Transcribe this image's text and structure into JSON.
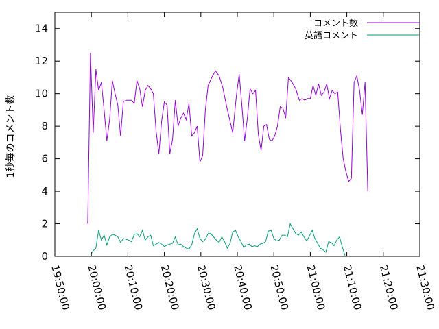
{
  "chart_data": {
    "type": "line",
    "title": "",
    "xlabel": "",
    "ylabel": "1秒毎のコメント数",
    "xlim": [
      "19:50:00",
      "21:30:00"
    ],
    "ylim": [
      0,
      15
    ],
    "x_ticks": [
      "19:50:00",
      "20:00:00",
      "20:10:00",
      "20:20:00",
      "20:30:00",
      "20:40:00",
      "20:50:00",
      "21:00:00",
      "21:10:00",
      "21:20:00",
      "21:30:00"
    ],
    "y_ticks": [
      0,
      2,
      4,
      6,
      8,
      10,
      12,
      14
    ],
    "grid": false,
    "legend_position": "top-right",
    "series": [
      {
        "name": "コメント数",
        "color": "#9400D3",
        "points": [
          [
            "19:59:00",
            2.0
          ],
          [
            "19:59:45",
            12.5
          ],
          [
            "20:00:30",
            7.6
          ],
          [
            "20:01:15",
            11.5
          ],
          [
            "20:02:00",
            10.2
          ],
          [
            "20:02:45",
            10.7
          ],
          [
            "20:03:30",
            9.0
          ],
          [
            "20:04:15",
            7.1
          ],
          [
            "20:05:00",
            8.4
          ],
          [
            "20:05:45",
            10.8
          ],
          [
            "20:06:30",
            10.0
          ],
          [
            "20:07:15",
            9.3
          ],
          [
            "20:08:00",
            7.4
          ],
          [
            "20:08:45",
            9.5
          ],
          [
            "20:09:30",
            9.6
          ],
          [
            "20:10:15",
            9.6
          ],
          [
            "20:11:00",
            9.6
          ],
          [
            "20:11:45",
            9.4
          ],
          [
            "20:12:30",
            10.8
          ],
          [
            "20:13:15",
            10.3
          ],
          [
            "20:14:00",
            9.2
          ],
          [
            "20:14:45",
            10.2
          ],
          [
            "20:15:30",
            10.5
          ],
          [
            "20:16:15",
            10.3
          ],
          [
            "20:17:00",
            10.0
          ],
          [
            "20:17:45",
            7.7
          ],
          [
            "20:18:30",
            6.3
          ],
          [
            "20:19:15",
            8.3
          ],
          [
            "20:20:00",
            9.5
          ],
          [
            "20:20:45",
            9.3
          ],
          [
            "20:21:30",
            6.3
          ],
          [
            "20:22:15",
            7.2
          ],
          [
            "20:23:00",
            9.6
          ],
          [
            "20:23:45",
            8.0
          ],
          [
            "20:24:30",
            8.5
          ],
          [
            "20:25:15",
            8.8
          ],
          [
            "20:26:00",
            8.4
          ],
          [
            "20:26:45",
            9.4
          ],
          [
            "20:27:30",
            7.4
          ],
          [
            "20:28:15",
            7.6
          ],
          [
            "20:29:00",
            8.0
          ],
          [
            "20:29:45",
            5.8
          ],
          [
            "20:30:30",
            6.2
          ],
          [
            "20:31:15",
            9.0
          ],
          [
            "20:32:00",
            10.5
          ],
          [
            "20:33:00",
            11.0
          ],
          [
            "20:34:00",
            11.4
          ],
          [
            "20:35:00",
            11.1
          ],
          [
            "20:36:00",
            10.4
          ],
          [
            "20:37:00",
            9.3
          ],
          [
            "20:38:00",
            8.3
          ],
          [
            "20:38:45",
            7.6
          ],
          [
            "20:39:45",
            9.9
          ],
          [
            "20:40:30",
            11.2
          ],
          [
            "20:41:15",
            9.3
          ],
          [
            "20:42:00",
            7.1
          ],
          [
            "20:42:45",
            8.5
          ],
          [
            "20:43:30",
            10.3
          ],
          [
            "20:44:15",
            10.0
          ],
          [
            "20:45:00",
            10.2
          ],
          [
            "20:45:45",
            7.5
          ],
          [
            "20:46:30",
            6.5
          ],
          [
            "20:47:15",
            8.0
          ],
          [
            "20:48:00",
            8.1
          ],
          [
            "20:48:45",
            7.2
          ],
          [
            "20:49:30",
            7.1
          ],
          [
            "20:50:15",
            7.4
          ],
          [
            "20:51:00",
            8.0
          ],
          [
            "20:51:45",
            9.2
          ],
          [
            "20:52:30",
            9.1
          ],
          [
            "20:53:15",
            8.5
          ],
          [
            "20:54:00",
            11.0
          ],
          [
            "20:55:00",
            10.7
          ],
          [
            "20:56:00",
            10.3
          ],
          [
            "20:57:00",
            9.6
          ],
          [
            "20:57:45",
            9.7
          ],
          [
            "20:58:30",
            9.6
          ],
          [
            "20:59:15",
            9.7
          ],
          [
            "21:00:00",
            9.7
          ],
          [
            "21:00:45",
            10.5
          ],
          [
            "21:01:30",
            9.9
          ],
          [
            "21:02:15",
            10.6
          ],
          [
            "21:03:00",
            9.9
          ],
          [
            "21:03:45",
            10.1
          ],
          [
            "21:04:30",
            10.6
          ],
          [
            "21:05:15",
            9.7
          ],
          [
            "21:06:00",
            10.2
          ],
          [
            "21:06:45",
            10.0
          ],
          [
            "21:07:30",
            10.1
          ],
          [
            "21:08:15",
            7.8
          ],
          [
            "21:09:00",
            6.0
          ],
          [
            "21:09:45",
            5.2
          ],
          [
            "21:10:30",
            4.6
          ],
          [
            "21:11:15",
            4.8
          ],
          [
            "21:12:00",
            10.7
          ],
          [
            "21:12:45",
            11.1
          ],
          [
            "21:13:30",
            10.2
          ],
          [
            "21:14:15",
            8.7
          ],
          [
            "21:15:00",
            10.7
          ],
          [
            "21:15:45",
            4.0
          ]
        ]
      },
      {
        "name": "英語コメント",
        "color": "#009E73",
        "points": [
          [
            "19:59:45",
            0.1
          ],
          [
            "20:00:30",
            0.35
          ],
          [
            "20:01:15",
            0.5
          ],
          [
            "20:02:00",
            1.6
          ],
          [
            "20:02:45",
            1.0
          ],
          [
            "20:03:30",
            1.3
          ],
          [
            "20:04:15",
            0.7
          ],
          [
            "20:05:00",
            1.2
          ],
          [
            "20:05:45",
            1.35
          ],
          [
            "20:06:30",
            1.3
          ],
          [
            "20:07:15",
            1.2
          ],
          [
            "20:08:00",
            0.85
          ],
          [
            "20:08:45",
            1.1
          ],
          [
            "20:09:30",
            1.05
          ],
          [
            "20:10:15",
            1.0
          ],
          [
            "20:11:00",
            0.9
          ],
          [
            "20:11:45",
            1.35
          ],
          [
            "20:12:30",
            1.4
          ],
          [
            "20:13:15",
            1.2
          ],
          [
            "20:14:00",
            1.6
          ],
          [
            "20:14:45",
            1.0
          ],
          [
            "20:15:30",
            1.2
          ],
          [
            "20:16:15",
            1.3
          ],
          [
            "20:17:00",
            0.65
          ],
          [
            "20:17:45",
            0.75
          ],
          [
            "20:18:30",
            0.85
          ],
          [
            "20:19:15",
            0.75
          ],
          [
            "20:20:00",
            0.6
          ],
          [
            "20:20:45",
            0.7
          ],
          [
            "20:21:30",
            0.75
          ],
          [
            "20:22:15",
            0.8
          ],
          [
            "20:23:00",
            1.2
          ],
          [
            "20:23:45",
            0.7
          ],
          [
            "20:24:30",
            0.75
          ],
          [
            "20:25:15",
            0.6
          ],
          [
            "20:26:00",
            0.5
          ],
          [
            "20:26:45",
            0.45
          ],
          [
            "20:27:30",
            0.7
          ],
          [
            "20:28:15",
            1.4
          ],
          [
            "20:29:00",
            1.7
          ],
          [
            "20:29:45",
            1.1
          ],
          [
            "20:30:30",
            0.9
          ],
          [
            "20:31:15",
            1.05
          ],
          [
            "20:32:00",
            1.4
          ],
          [
            "20:32:45",
            1.4
          ],
          [
            "20:33:30",
            1.2
          ],
          [
            "20:34:15",
            1.0
          ],
          [
            "20:35:00",
            0.85
          ],
          [
            "20:35:45",
            1.2
          ],
          [
            "20:36:30",
            0.9
          ],
          [
            "20:37:15",
            0.5
          ],
          [
            "20:38:00",
            0.8
          ],
          [
            "20:38:45",
            1.5
          ],
          [
            "20:39:30",
            1.6
          ],
          [
            "20:40:15",
            1.2
          ],
          [
            "20:41:00",
            0.9
          ],
          [
            "20:41:45",
            0.55
          ],
          [
            "20:42:30",
            0.7
          ],
          [
            "20:43:15",
            0.75
          ],
          [
            "20:44:00",
            0.6
          ],
          [
            "20:44:45",
            0.65
          ],
          [
            "20:45:30",
            0.6
          ],
          [
            "20:46:15",
            0.75
          ],
          [
            "20:47:00",
            0.8
          ],
          [
            "20:47:45",
            0.9
          ],
          [
            "20:48:30",
            1.55
          ],
          [
            "20:49:15",
            1.6
          ],
          [
            "20:50:00",
            1.1
          ],
          [
            "20:50:45",
            0.95
          ],
          [
            "20:51:30",
            1.0
          ],
          [
            "20:52:15",
            1.3
          ],
          [
            "20:53:00",
            1.3
          ],
          [
            "20:53:45",
            1.2
          ],
          [
            "20:54:30",
            2.0
          ],
          [
            "20:55:15",
            1.7
          ],
          [
            "20:56:00",
            1.4
          ],
          [
            "20:56:45",
            1.3
          ],
          [
            "20:57:30",
            1.5
          ],
          [
            "20:58:15",
            1.2
          ],
          [
            "20:59:00",
            0.95
          ],
          [
            "20:59:45",
            1.25
          ],
          [
            "21:00:30",
            1.6
          ],
          [
            "21:01:15",
            1.1
          ],
          [
            "21:02:00",
            0.8
          ],
          [
            "21:02:45",
            0.5
          ],
          [
            "21:03:30",
            0.4
          ],
          [
            "21:04:15",
            0.25
          ],
          [
            "21:05:00",
            0.9
          ],
          [
            "21:05:45",
            0.85
          ],
          [
            "21:06:30",
            0.65
          ],
          [
            "21:07:15",
            1.0
          ],
          [
            "21:08:00",
            1.2
          ],
          [
            "21:08:45",
            0.6
          ],
          [
            "21:09:30",
            0.05
          ]
        ]
      }
    ]
  }
}
